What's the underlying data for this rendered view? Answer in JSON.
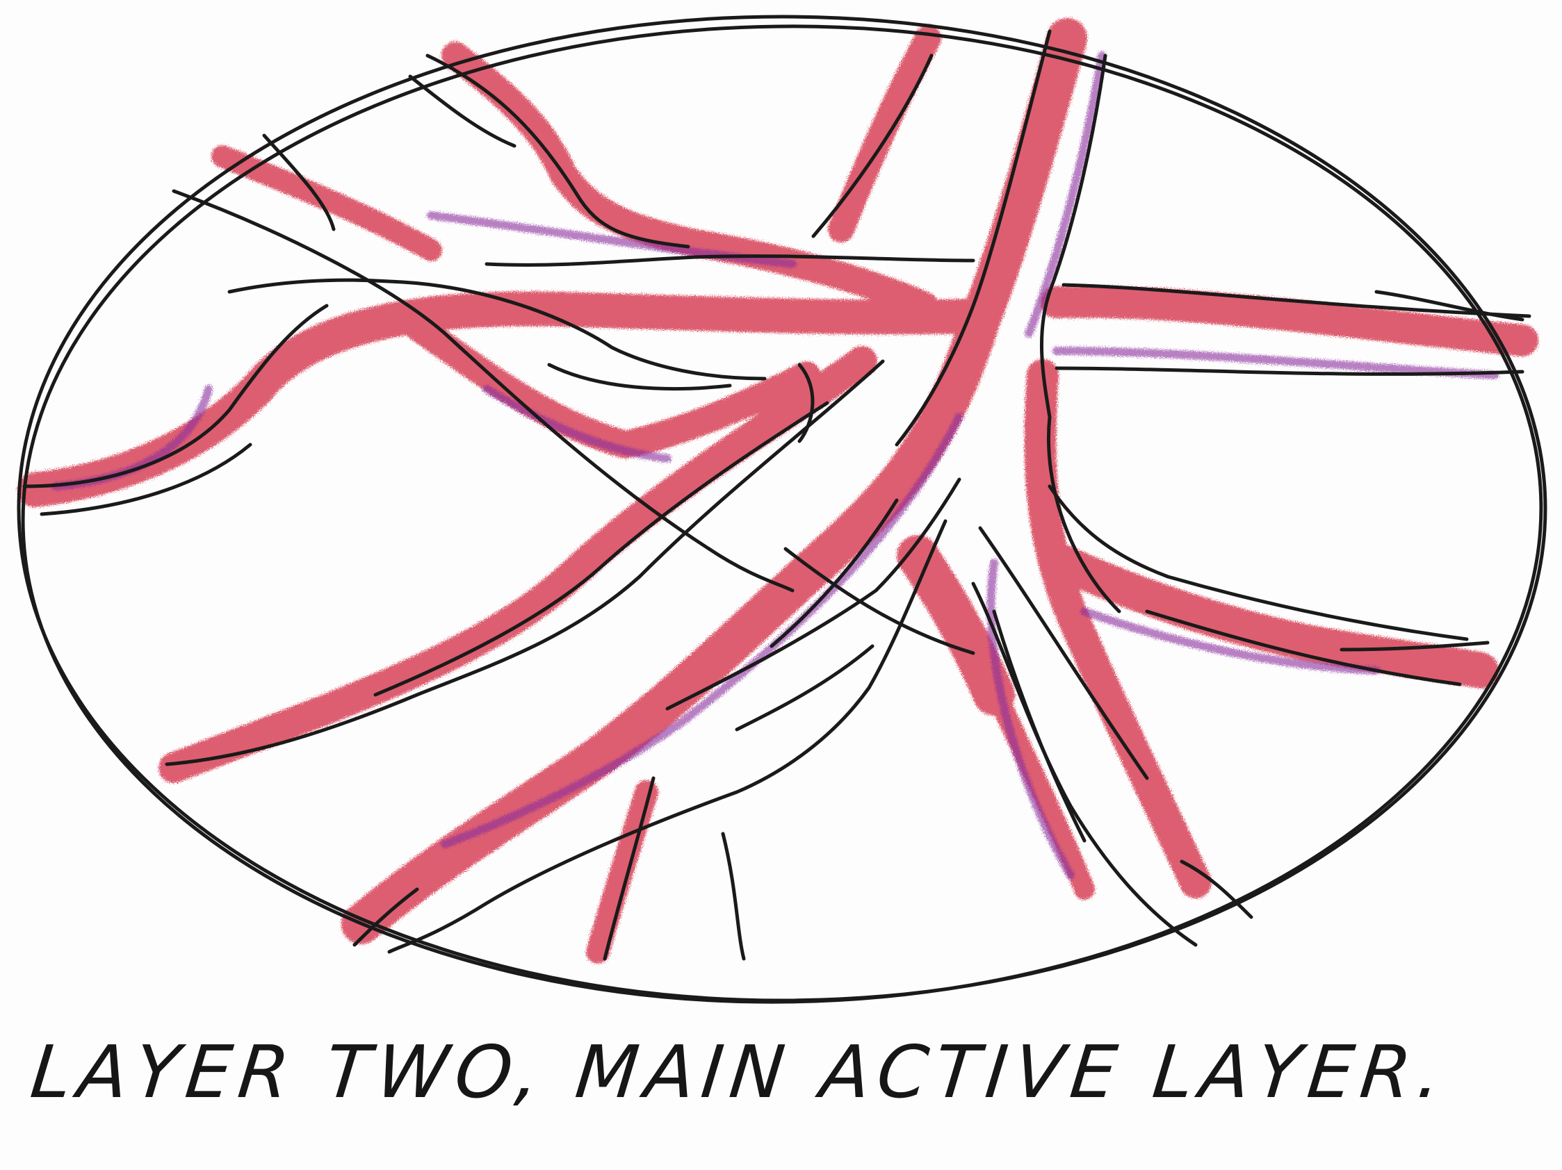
{
  "caption": "LAYER TWO, MAIN ACTIVE LAYER.",
  "colors": {
    "ink": "#1a1a1a",
    "red_pencil": "#d2233b",
    "purple_pencil": "#8b2f9e",
    "paper": "#fdfdfd"
  }
}
